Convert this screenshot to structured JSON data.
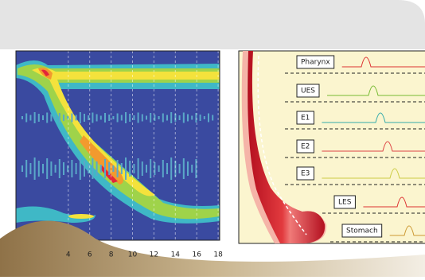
{
  "heatmap": {
    "xticks": [
      4,
      6,
      8,
      10,
      12,
      14,
      16,
      18
    ]
  },
  "diagram": {
    "labels": [
      "Pharynx",
      "UES",
      "E1",
      "E2",
      "E3",
      "LES",
      "Stomach"
    ]
  }
}
